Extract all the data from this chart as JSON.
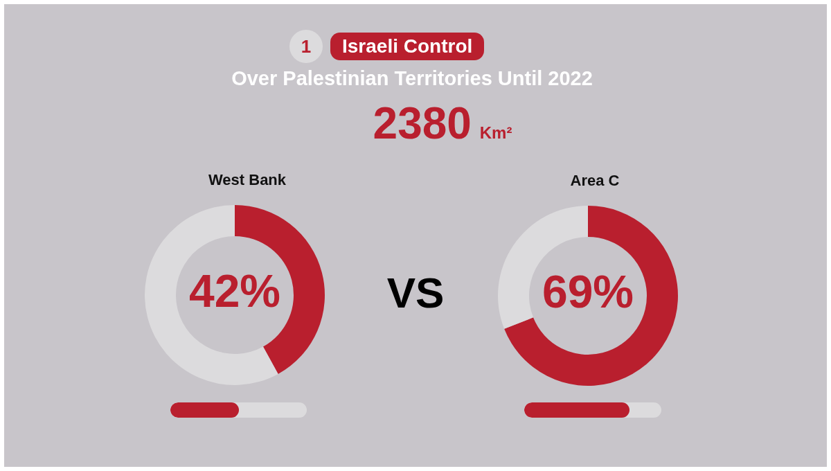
{
  "chart_data": [
    {
      "type": "other",
      "title": "Israeli Control",
      "subtitle": "Over Palestinian Territories Until 2022",
      "annotations": [
        "1",
        "2380 Km²"
      ]
    },
    {
      "type": "donut",
      "title": "West Bank",
      "categories": [
        null,
        null
      ],
      "values": [
        42,
        58
      ],
      "colors": [
        "#b91f2e",
        "#dcdbdd"
      ],
      "value_labels": [
        "42%",
        null
      ]
    },
    {
      "type": "other",
      "annotations": [
        "VS"
      ]
    },
    {
      "type": "donut",
      "title": "Area C",
      "categories": [
        null,
        null
      ],
      "values": [
        69,
        31
      ],
      "colors": [
        "#b91f2e",
        "#dcdbdd"
      ],
      "value_labels": [
        "69%",
        null
      ]
    }
  ]
}
